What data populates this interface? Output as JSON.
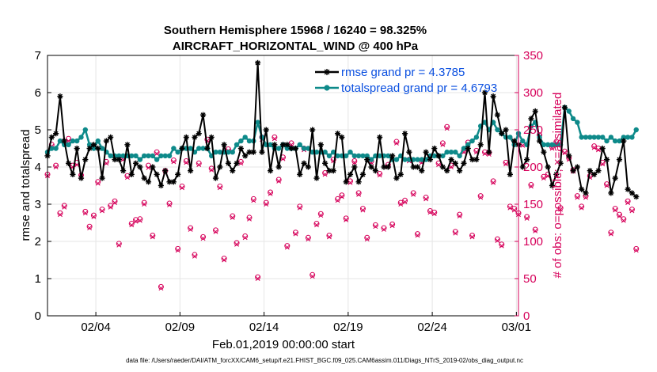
{
  "chart_data": {
    "type": "line",
    "title": "Southern Hemisphere 15968 / 16240 = 98.325%",
    "subtitle": "AIRCRAFT_HORIZONTAL_WIND @ 400 hPa",
    "xlabel": "Feb.01,2019 00:00:00 start",
    "ylabel": "rmse and totalspread",
    "ylabel_right": "# of obs: o=possible; ×=assimilated",
    "x_ticks": [
      "02/04",
      "02/09",
      "02/14",
      "02/19",
      "02/24",
      "03/01"
    ],
    "x_tick_values": [
      4,
      9,
      14,
      19,
      24,
      29
    ],
    "xlim": [
      1.125,
      29.125
    ],
    "ylim": [
      0,
      7
    ],
    "ylim_right": [
      0,
      350
    ],
    "y_ticks": [
      "0",
      "1",
      "2",
      "3",
      "4",
      "5",
      "6",
      "7"
    ],
    "y_ticks_right": [
      "0",
      "50",
      "100",
      "150",
      "200",
      "250",
      "300",
      "350"
    ],
    "grid": true,
    "legend_position": "top-right",
    "footer": "data file: /Users/raeder/DAI/ATM_forcXX/CAM6_setup/f.e21.FHIST_BGC.f09_025.CAM6assim.011/Diags_NTrS_2019-02/obs_diag_output.nc",
    "colors": {
      "rmse": "#000000",
      "spread": "#0e8a8a",
      "obs": "#d6005a",
      "legend_text": "#0a4fe0"
    },
    "series": [
      {
        "name": "rmse grand pr = 4.3785",
        "marker": "asterisk",
        "values": [
          4.3,
          4.8,
          4.9,
          5.9,
          4.7,
          4.1,
          3.8,
          4.5,
          3.7,
          4.2,
          4.5,
          4.6,
          4.5,
          3.7,
          4.7,
          4.8,
          4.2,
          4.2,
          3.9,
          4.6,
          3.8,
          4.1,
          4.0,
          3.7,
          3.6,
          4.0,
          3.8,
          3.5,
          3.9,
          3.6,
          3.6,
          3.8,
          4.5,
          4.8,
          3.9,
          4.8,
          4.9,
          5.4,
          4.5,
          4.8,
          3.7,
          4.0,
          4.6,
          4.1,
          3.9,
          4.1,
          4.5,
          4.3,
          4.4,
          4.4,
          6.8,
          4.4,
          5.0,
          3.9,
          4.6,
          4.0,
          4.6,
          4.6,
          4.5,
          4.5,
          3.8,
          4.1,
          4.0,
          5.0,
          3.7,
          4.6,
          4.1,
          3.9,
          3.9,
          4.9,
          4.8,
          3.6,
          3.8,
          4.0,
          3.6,
          3.8,
          4.2,
          4.0,
          3.9,
          4.8,
          4.0,
          4.0,
          4.3,
          3.7,
          3.8,
          4.9,
          4.4,
          4.0,
          4.0,
          3.9,
          4.4,
          4.2,
          4.5,
          4.3,
          4.0,
          3.9,
          4.2,
          4.1,
          3.9,
          4.1,
          4.5,
          4.2,
          4.2,
          4.6,
          6.0,
          4.4,
          5.9,
          5.4,
          4.9,
          5.0,
          3.8,
          4.7,
          4.6,
          4.0,
          4.2,
          5.3,
          5.5,
          4.7,
          4.4,
          4.0,
          3.5,
          3.8,
          4.1,
          5.6,
          4.3,
          3.9,
          4.0,
          3.4,
          3.3,
          3.9,
          3.8,
          3.9,
          4.5,
          4.2,
          3.3,
          3.7,
          4.2,
          4.7,
          3.4,
          3.3,
          3.2
        ]
      },
      {
        "name": "totalspread grand pr = 4.6793",
        "marker": "circle",
        "values": [
          4.4,
          4.5,
          4.5,
          4.7,
          4.6,
          4.6,
          4.7,
          4.7,
          4.8,
          5.0,
          4.6,
          4.5,
          4.7,
          4.5,
          4.4,
          4.3,
          4.3,
          4.3,
          4.3,
          4.3,
          4.3,
          4.3,
          4.2,
          4.3,
          4.3,
          4.3,
          4.2,
          4.3,
          4.3,
          4.3,
          4.5,
          4.4,
          4.5,
          4.5,
          4.5,
          4.4,
          4.5,
          4.5,
          4.5,
          4.3,
          4.4,
          4.4,
          4.4,
          4.4,
          4.4,
          4.6,
          4.7,
          4.8,
          4.7,
          4.7,
          5.2,
          4.8,
          4.6,
          4.6,
          4.5,
          4.5,
          4.6,
          4.5,
          4.5,
          4.5,
          4.6,
          4.5,
          4.5,
          4.4,
          4.4,
          4.4,
          4.4,
          4.3,
          4.4,
          4.3,
          4.3,
          4.3,
          4.4,
          4.3,
          4.3,
          4.3,
          4.3,
          4.2,
          4.3,
          4.3,
          4.3,
          4.3,
          4.2,
          4.2,
          4.3,
          4.2,
          4.2,
          4.2,
          4.2,
          4.2,
          4.2,
          4.3,
          4.3,
          4.3,
          4.3,
          4.4,
          4.4,
          4.4,
          4.3,
          4.5,
          4.6,
          4.7,
          4.8,
          5.1,
          5.2,
          5.0,
          5.2,
          5.0,
          4.9,
          4.8,
          4.8,
          4.6,
          4.9,
          4.7,
          4.6,
          5.1,
          5.2,
          4.8,
          4.6,
          4.6,
          4.6,
          4.6,
          4.6,
          5.6,
          5.5,
          5.3,
          5.2,
          4.8,
          4.8,
          4.8,
          4.8,
          4.8,
          4.8,
          4.7,
          4.8,
          4.7,
          4.7,
          4.8,
          4.8,
          4.8,
          5.0
        ]
      },
      {
        "name": "obs possible",
        "marker": "o",
        "axis": "right",
        "values": [
          190,
          230,
          202,
          138,
          148,
          238,
          202,
          206,
          189,
          140,
          120,
          135,
          180,
          143,
          207,
          148,
          154,
          97,
          212,
          188,
          124,
          129,
          130,
          152,
          202,
          108,
          220,
          39,
          195,
          151,
          209,
          90,
          174,
          208,
          118,
          82,
          205,
          106,
          237,
          198,
          115,
          174,
          77,
          224,
          134,
          98,
          207,
          107,
          132,
          157,
          52,
          240,
          152,
          166,
          240,
          183,
          213,
          94,
          232,
          112,
          147,
          225,
          105,
          55,
          124,
          137,
          192,
          108,
          210,
          157,
          162,
          131,
          181,
          208,
          165,
          144,
          105,
          208,
          122,
          191,
          118,
          203,
          123,
          234,
          152,
          155,
          210,
          165,
          110,
          208,
          159,
          141,
          139,
          205,
          232,
          254,
          202,
          113,
          136,
          222,
          233,
          108,
          222,
          161,
          220,
          219,
          181,
          103,
          96,
          206,
          147,
          144,
          138,
          231,
          133,
          176,
          116,
          243,
          187,
          190,
          227,
          234,
          145,
          221,
          212,
          196,
          161,
          147,
          161,
          188,
          228,
          225,
          206,
          177,
          112,
          144,
          136,
          130,
          154,
          143,
          90
        ]
      },
      {
        "name": "obs assimilated",
        "marker": "x",
        "axis": "right",
        "values": [
          188,
          228,
          200,
          136,
          146,
          235,
          200,
          203,
          187,
          138,
          118,
          133,
          178,
          141,
          205,
          146,
          152,
          95,
          210,
          186,
          122,
          127,
          128,
          150,
          199,
          106,
          218,
          37,
          193,
          149,
          207,
          88,
          172,
          206,
          116,
          80,
          203,
          104,
          235,
          196,
          113,
          172,
          75,
          222,
          132,
          96,
          205,
          105,
          130,
          155,
          50,
          237,
          150,
          164,
          238,
          181,
          211,
          92,
          230,
          110,
          145,
          223,
          103,
          53,
          122,
          135,
          190,
          106,
          208,
          155,
          160,
          129,
          179,
          206,
          163,
          142,
          103,
          206,
          120,
          189,
          116,
          201,
          121,
          232,
          150,
          153,
          208,
          163,
          108,
          206,
          157,
          139,
          137,
          203,
          230,
          252,
          200,
          111,
          134,
          220,
          231,
          106,
          220,
          159,
          218,
          217,
          179,
          101,
          94,
          204,
          145,
          142,
          136,
          229,
          131,
          174,
          114,
          241,
          185,
          188,
          225,
          232,
          143,
          219,
          210,
          194,
          159,
          145,
          159,
          186,
          226,
          223,
          204,
          175,
          110,
          142,
          134,
          128,
          152,
          141,
          88
        ]
      }
    ]
  }
}
